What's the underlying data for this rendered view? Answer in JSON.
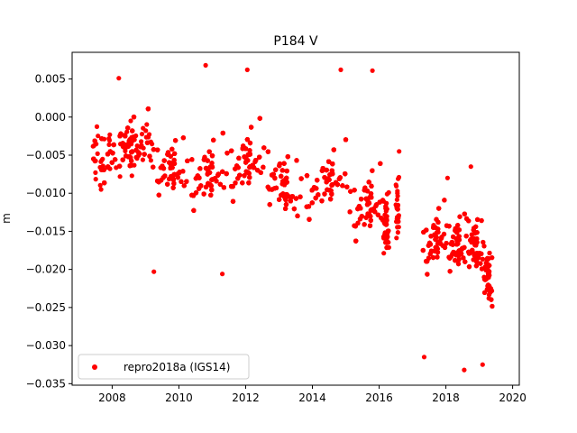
{
  "chart_data": {
    "type": "scatter",
    "title": "P184 V",
    "xlabel": "",
    "ylabel": "m",
    "xlim": [
      2006.8,
      2020.2
    ],
    "ylim": [
      -0.0352,
      0.0085
    ],
    "x_ticks": [
      2008,
      2010,
      2012,
      2014,
      2016,
      2018,
      2020
    ],
    "x_tick_labels": [
      "2008",
      "2010",
      "2012",
      "2014",
      "2016",
      "2018",
      "2020"
    ],
    "y_ticks": [
      0.005,
      0.0,
      -0.005,
      -0.01,
      -0.015,
      -0.02,
      -0.025,
      -0.03,
      -0.035
    ],
    "y_tick_labels": [
      "0.005",
      "0.000",
      "−0.005",
      "−0.010",
      "−0.015",
      "−0.020",
      "−0.025",
      "−0.030",
      "−0.035"
    ],
    "grid": false,
    "legend_position": "lower-left",
    "series": [
      {
        "name": "repro2018a (IGS14)",
        "color": "#ff0000",
        "marker": "circle",
        "segments": [
          {
            "x_start": 2007.4,
            "x_end": 2009.2,
            "mean_start": -0.006,
            "mean_end": -0.004,
            "spread": 0.0035
          },
          {
            "x_start": 2009.2,
            "x_end": 2010.2,
            "mean_start": -0.007,
            "mean_end": -0.008,
            "spread": 0.0035
          },
          {
            "x_start": 2010.2,
            "x_end": 2011.4,
            "mean_start": -0.009,
            "mean_end": -0.008,
            "spread": 0.004
          },
          {
            "x_start": 2011.4,
            "x_end": 2012.5,
            "mean_start": -0.008,
            "mean_end": -0.006,
            "spread": 0.004
          },
          {
            "x_start": 2012.5,
            "x_end": 2013.6,
            "mean_start": -0.007,
            "mean_end": -0.012,
            "spread": 0.004
          },
          {
            "x_start": 2013.6,
            "x_end": 2015.1,
            "mean_start": -0.011,
            "mean_end": -0.008,
            "spread": 0.0035
          },
          {
            "x_start": 2015.1,
            "x_end": 2016.1,
            "mean_start": -0.013,
            "mean_end": -0.012,
            "spread": 0.004
          },
          {
            "x_start": 2016.1,
            "x_end": 2016.3,
            "mean_start": -0.014,
            "mean_end": -0.016,
            "spread": 0.004
          },
          {
            "x_start": 2016.5,
            "x_end": 2016.6,
            "mean_start": -0.012,
            "mean_end": -0.014,
            "spread": 0.004
          },
          {
            "x_start": 2017.3,
            "x_end": 2018.0,
            "mean_start": -0.018,
            "mean_end": -0.016,
            "spread": 0.0035
          },
          {
            "x_start": 2018.0,
            "x_end": 2018.6,
            "mean_start": -0.017,
            "mean_end": -0.018,
            "spread": 0.0035
          },
          {
            "x_start": 2018.6,
            "x_end": 2019.1,
            "mean_start": -0.016,
            "mean_end": -0.019,
            "spread": 0.0035
          },
          {
            "x_start": 2019.1,
            "x_end": 2019.4,
            "mean_start": -0.019,
            "mean_end": -0.024,
            "spread": 0.0035
          }
        ],
        "outliers": [
          {
            "x": 2010.8,
            "y": 0.0068
          },
          {
            "x": 2012.05,
            "y": 0.0062
          },
          {
            "x": 2014.85,
            "y": 0.0062
          },
          {
            "x": 2015.8,
            "y": 0.0061
          },
          {
            "x": 2008.2,
            "y": 0.0051
          },
          {
            "x": 2009.25,
            "y": -0.0203
          },
          {
            "x": 2011.3,
            "y": -0.0206
          },
          {
            "x": 2017.35,
            "y": -0.0315
          },
          {
            "x": 2018.55,
            "y": -0.0332
          },
          {
            "x": 2019.1,
            "y": -0.0325
          },
          {
            "x": 2018.05,
            "y": -0.008
          },
          {
            "x": 2016.6,
            "y": -0.0045
          },
          {
            "x": 2018.75,
            "y": -0.0065
          }
        ]
      }
    ]
  }
}
